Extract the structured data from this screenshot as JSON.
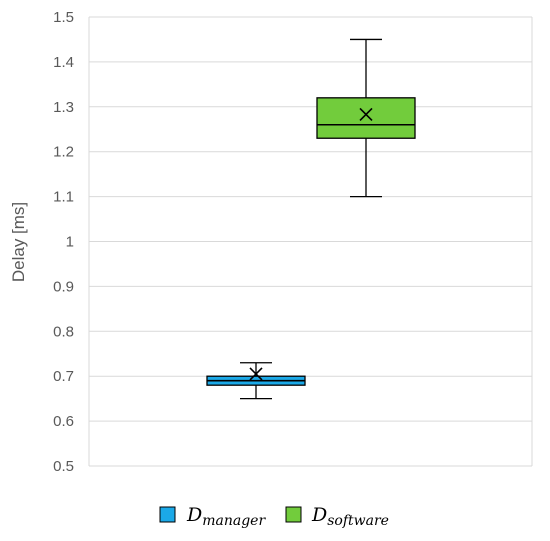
{
  "chart_data": {
    "type": "box",
    "ylabel": "Delay [ms]",
    "ylim": [
      0.5,
      1.5
    ],
    "ytick_step": 0.1,
    "yticks": [
      "0.5",
      "0.6",
      "0.7",
      "0.8",
      "0.9",
      "1",
      "1.1",
      "1.2",
      "1.3",
      "1.4",
      "1.5"
    ],
    "grid": true,
    "legend_position": "bottom",
    "series": [
      {
        "name": "D",
        "name_subscript": "manager",
        "color": "#1BA9E8",
        "min": 0.65,
        "q1": 0.68,
        "median": 0.69,
        "q3": 0.7,
        "max": 0.73,
        "mean": 0.705
      },
      {
        "name": "D",
        "name_subscript": "software",
        "color": "#72CC3C",
        "min": 1.1,
        "q1": 1.23,
        "median": 1.26,
        "q3": 1.32,
        "max": 1.45,
        "mean": 1.283
      }
    ]
  }
}
